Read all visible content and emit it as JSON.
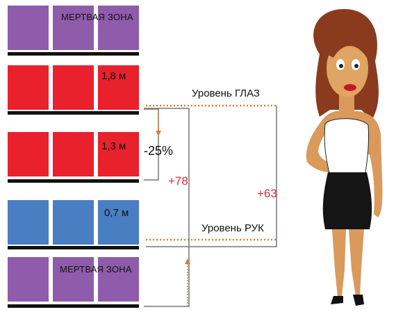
{
  "colors": {
    "purple": "#8f5cab",
    "red": "#e8212d",
    "blue": "#4a7ec2",
    "shelf": "#111111",
    "guide": "#777777",
    "dotted": "#e07b2e",
    "accent_text": "#e02a35"
  },
  "shelves": [
    {
      "color": "purple",
      "label": "МЕРТВАЯ ЗОНА"
    },
    {
      "color": "red",
      "label": "1,8 м"
    },
    {
      "color": "red",
      "label": "1,3 м"
    },
    {
      "color": "blue",
      "label": "0,7 м"
    },
    {
      "color": "purple",
      "label": "МЕРТВАЯ ЗОНА"
    }
  ],
  "levels": {
    "eye": "Уровень ГЛАЗ",
    "hand": "Уровень РУК"
  },
  "annotations": {
    "drop": "-25%",
    "plus78": "+78",
    "plus63": "+63"
  },
  "figure": {
    "icon": "woman-figure-icon"
  }
}
